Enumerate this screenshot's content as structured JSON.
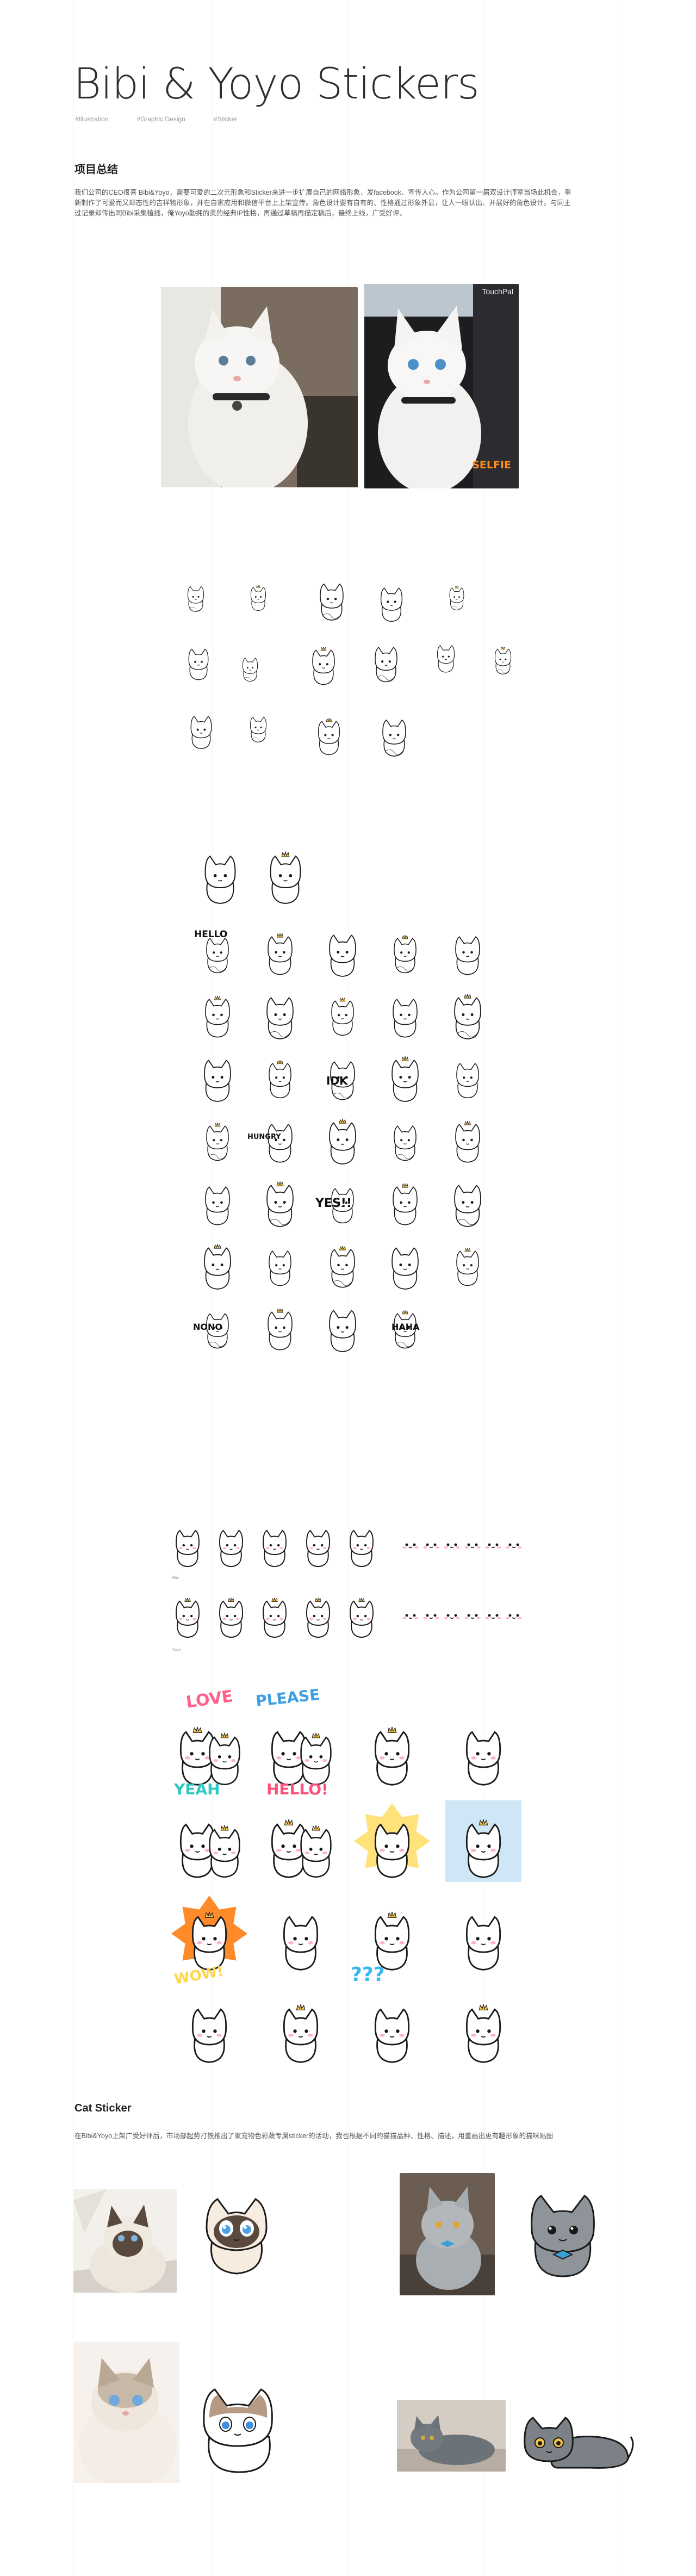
{
  "header": {
    "title": "Bibi & Yoyo Stickers",
    "tags": [
      "#Illustration",
      "#Graphic Design",
      "#Sticker"
    ]
  },
  "summary": {
    "heading": "项目总结",
    "body": "我们公司的CEO很喜 Bibi&Yoyo，需要可爱的二次元形象和Sticker来进一步扩展自己的网络形象，发facebook、宣传人心。作为公司第一届双设计师室当场此机会，重新制作了可爱而又却态性的吉祥物形象，并在自家应用和微信平台上上架宣传。角色设计要有自有的、性格通过形象外显，让人一眼认出、并展好的角色设计。与同主过记录却传出同Bibi采集植插，俺Yoyo勤拥的灵的经典IP性格，再通过草稿再描定稿后，最终上线，广受好评。"
  },
  "photos": {
    "selfie_label": "SELFIE",
    "touchpal_label": "TouchPal"
  },
  "stickers": {
    "words": {
      "hello_sketch": "HELLO",
      "idk": "IDK",
      "hungry": "HUNGRY",
      "yes": "YES!!",
      "nono": "NONO",
      "haha": "HAHA",
      "love": "LOVE",
      "please": "PLEASE",
      "yeah": "YEAH",
      "hello_color": "HELLO!",
      "wow": "WOW!",
      "qqq": "???"
    },
    "row_labels": [
      "Bibi",
      "Yoyo"
    ]
  },
  "cat_sticker": {
    "heading": "Cat Sticker",
    "body": "在Bibi&Yoyo上架广受好评后，市场部起势打铁推出了家宠物色彩蔬专属sticker的活动，我也根据不同的猫猫品种、性格、描述，用重画出更有趣形象的猫咪贴图"
  },
  "colors": {
    "ink": "#1a1a1a",
    "crown": "#f6c544",
    "accent_orange": "#ff8f1a",
    "pink": "#ff8fa8",
    "blue": "#3ea0e4"
  }
}
